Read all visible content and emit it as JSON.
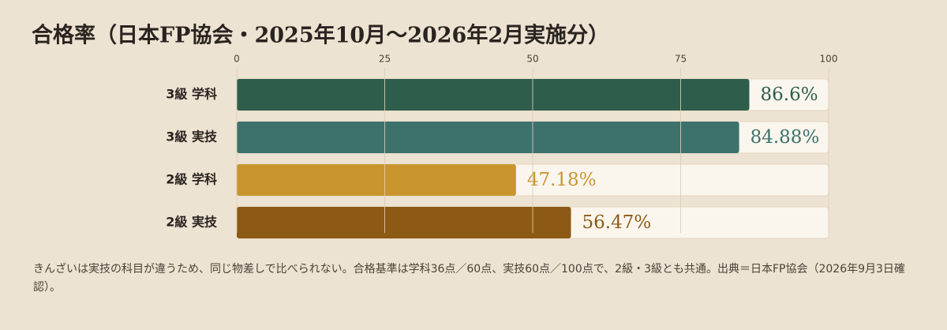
{
  "chart_data": {
    "type": "bar",
    "orientation": "horizontal",
    "title": "合格率（日本FP協会・2025年10月〜2026年2月実施分）",
    "categories": [
      "3級 学科",
      "3級 実技",
      "2級 学科",
      "2級 実技"
    ],
    "values": [
      86.6,
      84.88,
      47.18,
      56.47
    ],
    "value_labels": [
      "86.6%",
      "84.88%",
      "47.18%",
      "56.47%"
    ],
    "colors": [
      "#2e5e4b",
      "#3d726c",
      "#c9952f",
      "#8c5a14"
    ],
    "xlim": [
      0,
      100
    ],
    "xticks": [
      0,
      25,
      50,
      75,
      100
    ],
    "grid": true,
    "note": "きんざいは実技の科目が違うため、同じ物差しで比べられない。合格基準は学科36点／60点、実技60点／100点で、2級・3級とも共通。出典＝日本FP協会（2026年9月3日確認）。"
  }
}
